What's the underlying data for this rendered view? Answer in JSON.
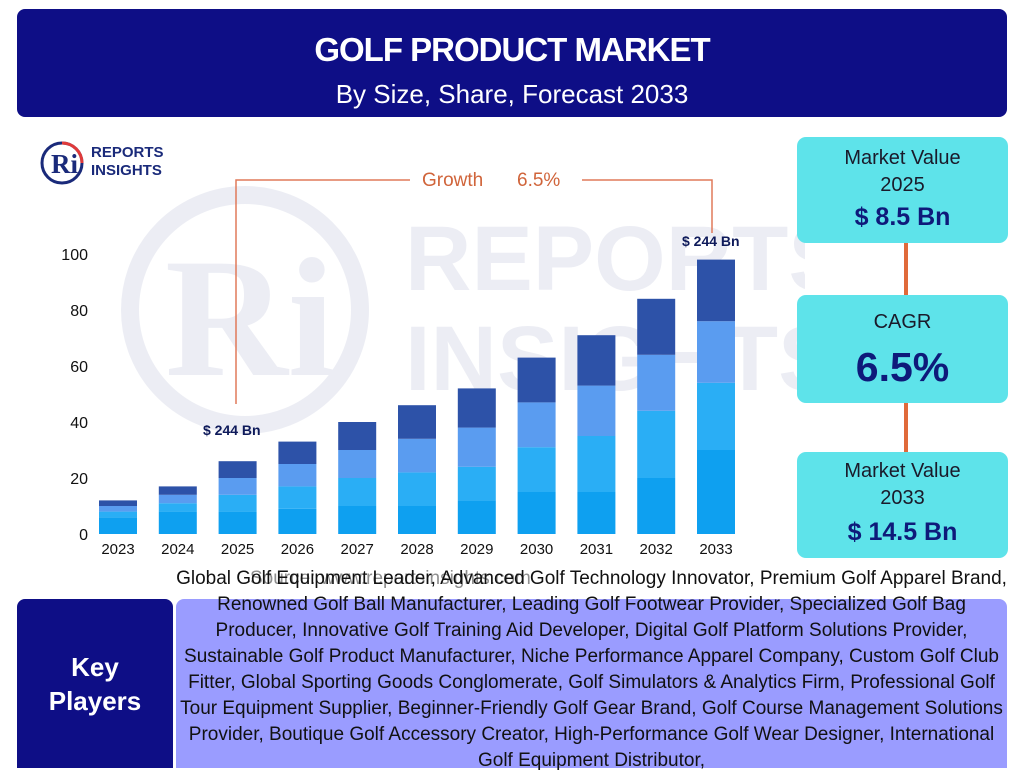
{
  "header": {
    "title": "GOLF PRODUCT MARKET",
    "subtitle": "By Size, Share, Forecast 2033"
  },
  "logo": {
    "line1": "REPORTS",
    "line2": "INSIGHTS",
    "mark": "Ri"
  },
  "source_note": "Source: www.reportsinsights.com",
  "growth_label": "Growth",
  "growth_value": "6.5%",
  "bar_label_start": "$ 244 Bn",
  "bar_label_end": "$ 244 Bn",
  "cards": {
    "value_2025": {
      "label": "Market Value\n2025",
      "value": "$ 8.5 Bn"
    },
    "cagr": {
      "label": "CAGR",
      "value": "6.5%"
    },
    "value_2033": {
      "label": "Market Value\n2033",
      "value": "$ 14.5 Bn"
    }
  },
  "key_players": {
    "title": "Key\nPlayers",
    "text": "Global Golf Equipment Leader, Advanced Golf Technology Innovator, Premium Golf Apparel Brand, Renowned Golf Ball Manufacturer, Leading Golf Footwear Provider, Specialized Golf Bag Producer, Innovative Golf Training Aid Developer, Digital Golf Platform Solutions Provider, Sustainable Golf Product Manufacturer, Niche Performance Apparel Company, Custom Golf Club Fitter, Global Sporting Goods Conglomerate, Golf Simulators & Analytics Firm, Professional Golf Tour Equipment Supplier, Beginner-Friendly Golf Gear Brand, Golf Course Management Solutions Provider, Boutique Golf Accessory Creator, High-Performance Golf Wear Designer, International Golf Equipment Distributor,"
  },
  "colors": {
    "navy": "#0e0e86",
    "card": "#5ee3ea",
    "accent": "#e06a3a",
    "kp_bg": "#9a9cff"
  },
  "chart_data": {
    "type": "bar",
    "stacked": true,
    "categories": [
      "2023",
      "2024",
      "2025",
      "2026",
      "2027",
      "2028",
      "2029",
      "2030",
      "2031",
      "2032",
      "2033"
    ],
    "series": [
      {
        "color": "#0ea0f0",
        "values": [
          6,
          8,
          8,
          9,
          10,
          10,
          12,
          15,
          15,
          20,
          30
        ]
      },
      {
        "color": "#2aaef5",
        "values": [
          2,
          3,
          6,
          8,
          10,
          12,
          12,
          16,
          20,
          24,
          24
        ]
      },
      {
        "color": "#5a9cf0",
        "values": [
          2,
          3,
          6,
          8,
          10,
          12,
          14,
          16,
          18,
          20,
          22
        ]
      },
      {
        "color": "#2d52a8",
        "values": [
          2,
          3,
          6,
          8,
          10,
          12,
          14,
          16,
          18,
          20,
          22
        ]
      }
    ],
    "ylim": [
      0,
      100
    ],
    "yticks": [
      0,
      20,
      40,
      60,
      80,
      100
    ],
    "grid": false,
    "legend": "none"
  }
}
